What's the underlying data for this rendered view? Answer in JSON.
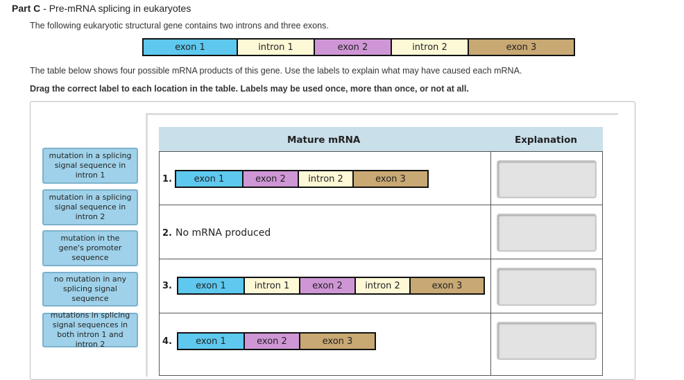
{
  "header": {
    "part": "Part C",
    "sep": " - ",
    "title": "Pre-mRNA splicing in eukaryotes"
  },
  "intro": "The following eukaryotic structural gene contains two introns and three exons.",
  "gene": [
    {
      "label": "exon 1",
      "type": "exon1"
    },
    {
      "label": "intron 1",
      "type": "intron1"
    },
    {
      "label": "exon 2",
      "type": "exon2"
    },
    {
      "label": "intron 2",
      "type": "intron2"
    },
    {
      "label": "exon 3",
      "type": "exon3"
    }
  ],
  "description": "The table below shows four possible mRNA products of this gene. Use the labels to explain what may have caused each mRNA.",
  "instruction": "Drag the correct label to each location in the table. Labels may be used once, more than once, or not at all.",
  "labels": [
    "mutation in a splicing signal sequence in intron 1",
    "mutation in a splicing signal sequence in intron 2",
    "mutation in the gene's promoter sequence",
    "no mutation in any splicing signal sequence",
    "mutations in splicing signal sequences in both intron 1 and intron 2"
  ],
  "table": {
    "col_mature": "Mature mRNA",
    "col_explanation": "Explanation",
    "rows": [
      {
        "num": "1.",
        "segments": [
          "exon 1",
          "exon 2",
          "intron 2",
          "exon 3"
        ]
      },
      {
        "num": "2.",
        "text": "No mRNA produced"
      },
      {
        "num": "3.",
        "segments": [
          "exon 1",
          "intron 1",
          "exon 2",
          "intron 2",
          "exon 3"
        ]
      },
      {
        "num": "4.",
        "segments": [
          "exon 1",
          "exon 2",
          "exon 3"
        ]
      }
    ]
  },
  "colors": {
    "exon1": "#5ec8ef",
    "intron": "#fdf8d6",
    "exon2": "#cf96d6",
    "exon3": "#c8a873",
    "label_bg": "#9fd2ea",
    "header_bg": "#c9dfea"
  }
}
